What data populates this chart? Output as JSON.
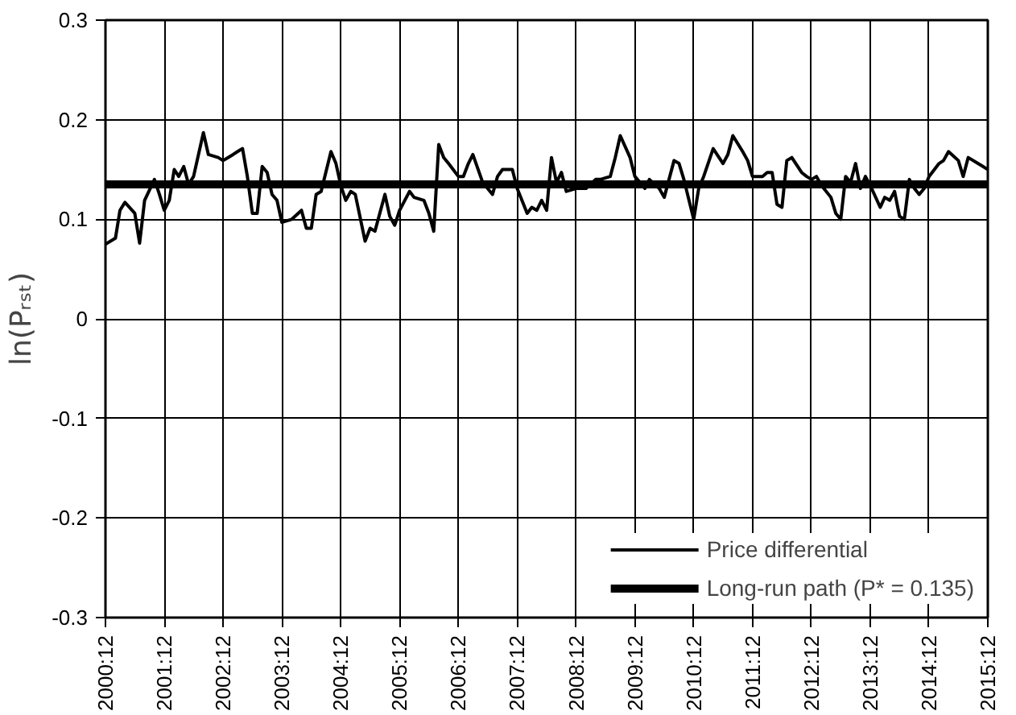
{
  "chart_data": {
    "type": "line",
    "ylabel": "ln(Pᵣₛₜ)",
    "xlim": [
      "2000-12",
      "2015-12"
    ],
    "ylim": [
      -0.3,
      0.3
    ],
    "yticks": [
      -0.3,
      -0.2,
      -0.1,
      0,
      0.1,
      0.2,
      0.3
    ],
    "xticks": [
      {
        "value": "2000-12",
        "label": "2000:12"
      },
      {
        "value": "2001-12",
        "label": "2001:12"
      },
      {
        "value": "2002-12",
        "label": "2002:12"
      },
      {
        "value": "2003-12",
        "label": "2003:12"
      },
      {
        "value": "2004-12",
        "label": "2004:12"
      },
      {
        "value": "2005-12",
        "label": "2005:12"
      },
      {
        "value": "2006-12",
        "label": "2006:12"
      },
      {
        "value": "2007-12",
        "label": "2007:12"
      },
      {
        "value": "2008-12",
        "label": "2008:12"
      },
      {
        "value": "2009-12",
        "label": "2009:12"
      },
      {
        "value": "2010-12",
        "label": "2010:12"
      },
      {
        "value": "2011-12",
        "label": "2011:12"
      },
      {
        "value": "2012-12",
        "label": "2012:12"
      },
      {
        "value": "2013-12",
        "label": "2013:12"
      },
      {
        "value": "2014-12",
        "label": "2014:12"
      },
      {
        "value": "2015-12",
        "label": "2015:12"
      }
    ],
    "grid": true,
    "legend": "bottom right",
    "line_style": "solid",
    "series": [
      {
        "name": "Price differential",
        "color": "#000000",
        "x": [
          "2000-12",
          "2001-02",
          "2001-03",
          "2001-04",
          "2001-06",
          "2001-07",
          "2001-08",
          "2001-10",
          "2001-11",
          "2001-12",
          "2002-01",
          "2002-02",
          "2002-03",
          "2002-04",
          "2002-05",
          "2002-06",
          "2002-08",
          "2002-09",
          "2002-11",
          "2002-12",
          "2003-01",
          "2003-02",
          "2003-03",
          "2003-04",
          "2003-05",
          "2003-06",
          "2003-07",
          "2003-08",
          "2003-09",
          "2003-10",
          "2003-11",
          "2003-12",
          "2004-02",
          "2004-04",
          "2004-05",
          "2004-06",
          "2004-07",
          "2004-08",
          "2004-10",
          "2004-11",
          "2004-12",
          "2005-01",
          "2005-02",
          "2005-03",
          "2005-05",
          "2005-06",
          "2005-07",
          "2005-09",
          "2005-10",
          "2005-11",
          "2005-12",
          "2006-02",
          "2006-03",
          "2006-05",
          "2006-06",
          "2006-07",
          "2006-08",
          "2006-09",
          "2006-10",
          "2006-12",
          "2007-01",
          "2007-02",
          "2007-03",
          "2007-05",
          "2007-07",
          "2007-08",
          "2007-09",
          "2007-11",
          "2007-12",
          "2008-02",
          "2008-03",
          "2008-04",
          "2008-05",
          "2008-06",
          "2008-07",
          "2008-08",
          "2008-09",
          "2008-10",
          "2008-12",
          "2009-02",
          "2009-04",
          "2009-05",
          "2009-07",
          "2009-08",
          "2009-09",
          "2009-11",
          "2009-12",
          "2010-02",
          "2010-03",
          "2010-05",
          "2010-06",
          "2010-08",
          "2010-09",
          "2010-10",
          "2010-12",
          "2011-01",
          "2011-02",
          "2011-04",
          "2011-06",
          "2011-07",
          "2011-08",
          "2011-10",
          "2011-11",
          "2011-12",
          "2012-02",
          "2012-03",
          "2012-04",
          "2012-05",
          "2012-06",
          "2012-07",
          "2012-08",
          "2012-10",
          "2012-11",
          "2012-12",
          "2013-01",
          "2013-02",
          "2013-04",
          "2013-05",
          "2013-06",
          "2013-07",
          "2013-08",
          "2013-09",
          "2013-10",
          "2013-11",
          "2013-12",
          "2014-02",
          "2014-03",
          "2014-04",
          "2014-05",
          "2014-06",
          "2014-07",
          "2014-08",
          "2014-09",
          "2014-10",
          "2014-11",
          "2014-12",
          "2015-02",
          "2015-03",
          "2015-04",
          "2015-06",
          "2015-07",
          "2015-08",
          "2015-10",
          "2015-11",
          "2015-12"
        ],
        "values": [
          0.075,
          0.081,
          0.109,
          0.117,
          0.106,
          0.076,
          0.119,
          0.14,
          0.125,
          0.109,
          0.119,
          0.15,
          0.143,
          0.153,
          0.135,
          0.143,
          0.187,
          0.165,
          0.162,
          0.159,
          0.162,
          0.165,
          0.168,
          0.171,
          0.143,
          0.106,
          0.106,
          0.153,
          0.147,
          0.125,
          0.119,
          0.097,
          0.1,
          0.109,
          0.091,
          0.091,
          0.125,
          0.128,
          0.168,
          0.156,
          0.134,
          0.119,
          0.128,
          0.125,
          0.078,
          0.091,
          0.088,
          0.125,
          0.103,
          0.094,
          0.109,
          0.128,
          0.122,
          0.119,
          0.106,
          0.088,
          0.175,
          0.162,
          0.156,
          0.143,
          0.143,
          0.156,
          0.165,
          0.137,
          0.125,
          0.143,
          0.15,
          0.15,
          0.131,
          0.106,
          0.112,
          0.109,
          0.119,
          0.109,
          0.162,
          0.137,
          0.147,
          0.128,
          0.131,
          0.131,
          0.14,
          0.14,
          0.143,
          0.162,
          0.184,
          0.162,
          0.143,
          0.131,
          0.14,
          0.131,
          0.122,
          0.159,
          0.156,
          0.14,
          0.1,
          0.131,
          0.143,
          0.171,
          0.156,
          0.165,
          0.184,
          0.168,
          0.159,
          0.143,
          0.143,
          0.147,
          0.147,
          0.115,
          0.112,
          0.159,
          0.162,
          0.147,
          0.143,
          0.14,
          0.143,
          0.134,
          0.122,
          0.106,
          0.1,
          0.143,
          0.137,
          0.156,
          0.131,
          0.143,
          0.134,
          0.112,
          0.122,
          0.119,
          0.128,
          0.103,
          0.1,
          0.14,
          0.131,
          0.125,
          0.131,
          0.143,
          0.156,
          0.159,
          0.168,
          0.159,
          0.143,
          0.162,
          0.156,
          0.153,
          0.15
        ]
      },
      {
        "name": "Long-run path (P* = 0.135)",
        "color": "#000000",
        "x": [
          "2000-12",
          "2015-12"
        ],
        "values": [
          0.135,
          0.135
        ]
      }
    ]
  }
}
